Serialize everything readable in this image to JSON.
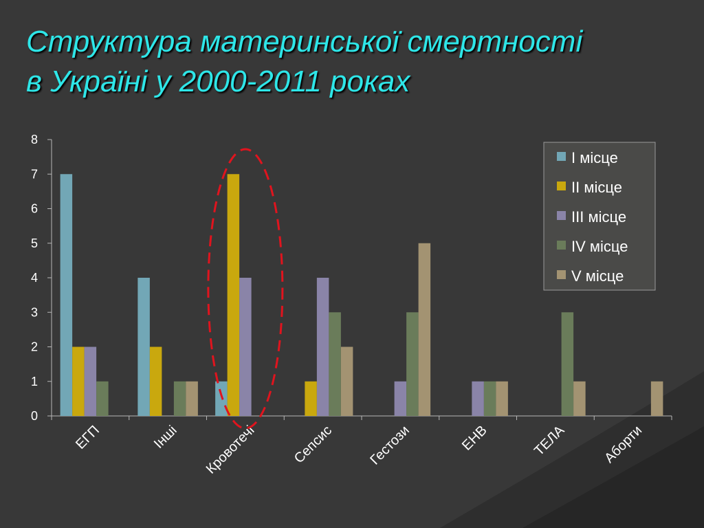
{
  "title": {
    "line1": "Структура материнської смертності",
    "line2": "в Україні у 2000-2011 роках"
  },
  "colors": {
    "title": "#2ee6e8",
    "background": "#383838",
    "highlight": "#e0141e"
  },
  "chart_data": {
    "type": "bar",
    "title": "",
    "xlabel": "",
    "ylabel": "",
    "ylim": [
      0,
      8
    ],
    "yticks": [
      0,
      1,
      2,
      3,
      4,
      5,
      6,
      7,
      8
    ],
    "grid": false,
    "legend_position": "top-right",
    "highlight_category": "Кровотечі",
    "categories": [
      "ЕГП",
      "Інші",
      "Кровотечі",
      "Сепсис",
      "Гестози",
      "ЕНВ",
      "ТЕЛА",
      "Аборти"
    ],
    "series": [
      {
        "name": "I місце",
        "color": "#72a7b6",
        "values": [
          7,
          4,
          1,
          0,
          0,
          0,
          0,
          0
        ]
      },
      {
        "name": "II місце",
        "color": "#c9a80e",
        "values": [
          2,
          2,
          7,
          1,
          0,
          0,
          0,
          0
        ]
      },
      {
        "name": "III місце",
        "color": "#8a84a8",
        "values": [
          2,
          0,
          4,
          4,
          1,
          1,
          0,
          0
        ]
      },
      {
        "name": "IV місце",
        "color": "#6a7c5a",
        "values": [
          1,
          1,
          0,
          3,
          3,
          1,
          3,
          0
        ]
      },
      {
        "name": "V місце",
        "color": "#a39372",
        "values": [
          0,
          1,
          0,
          2,
          5,
          1,
          1,
          1
        ]
      }
    ]
  }
}
